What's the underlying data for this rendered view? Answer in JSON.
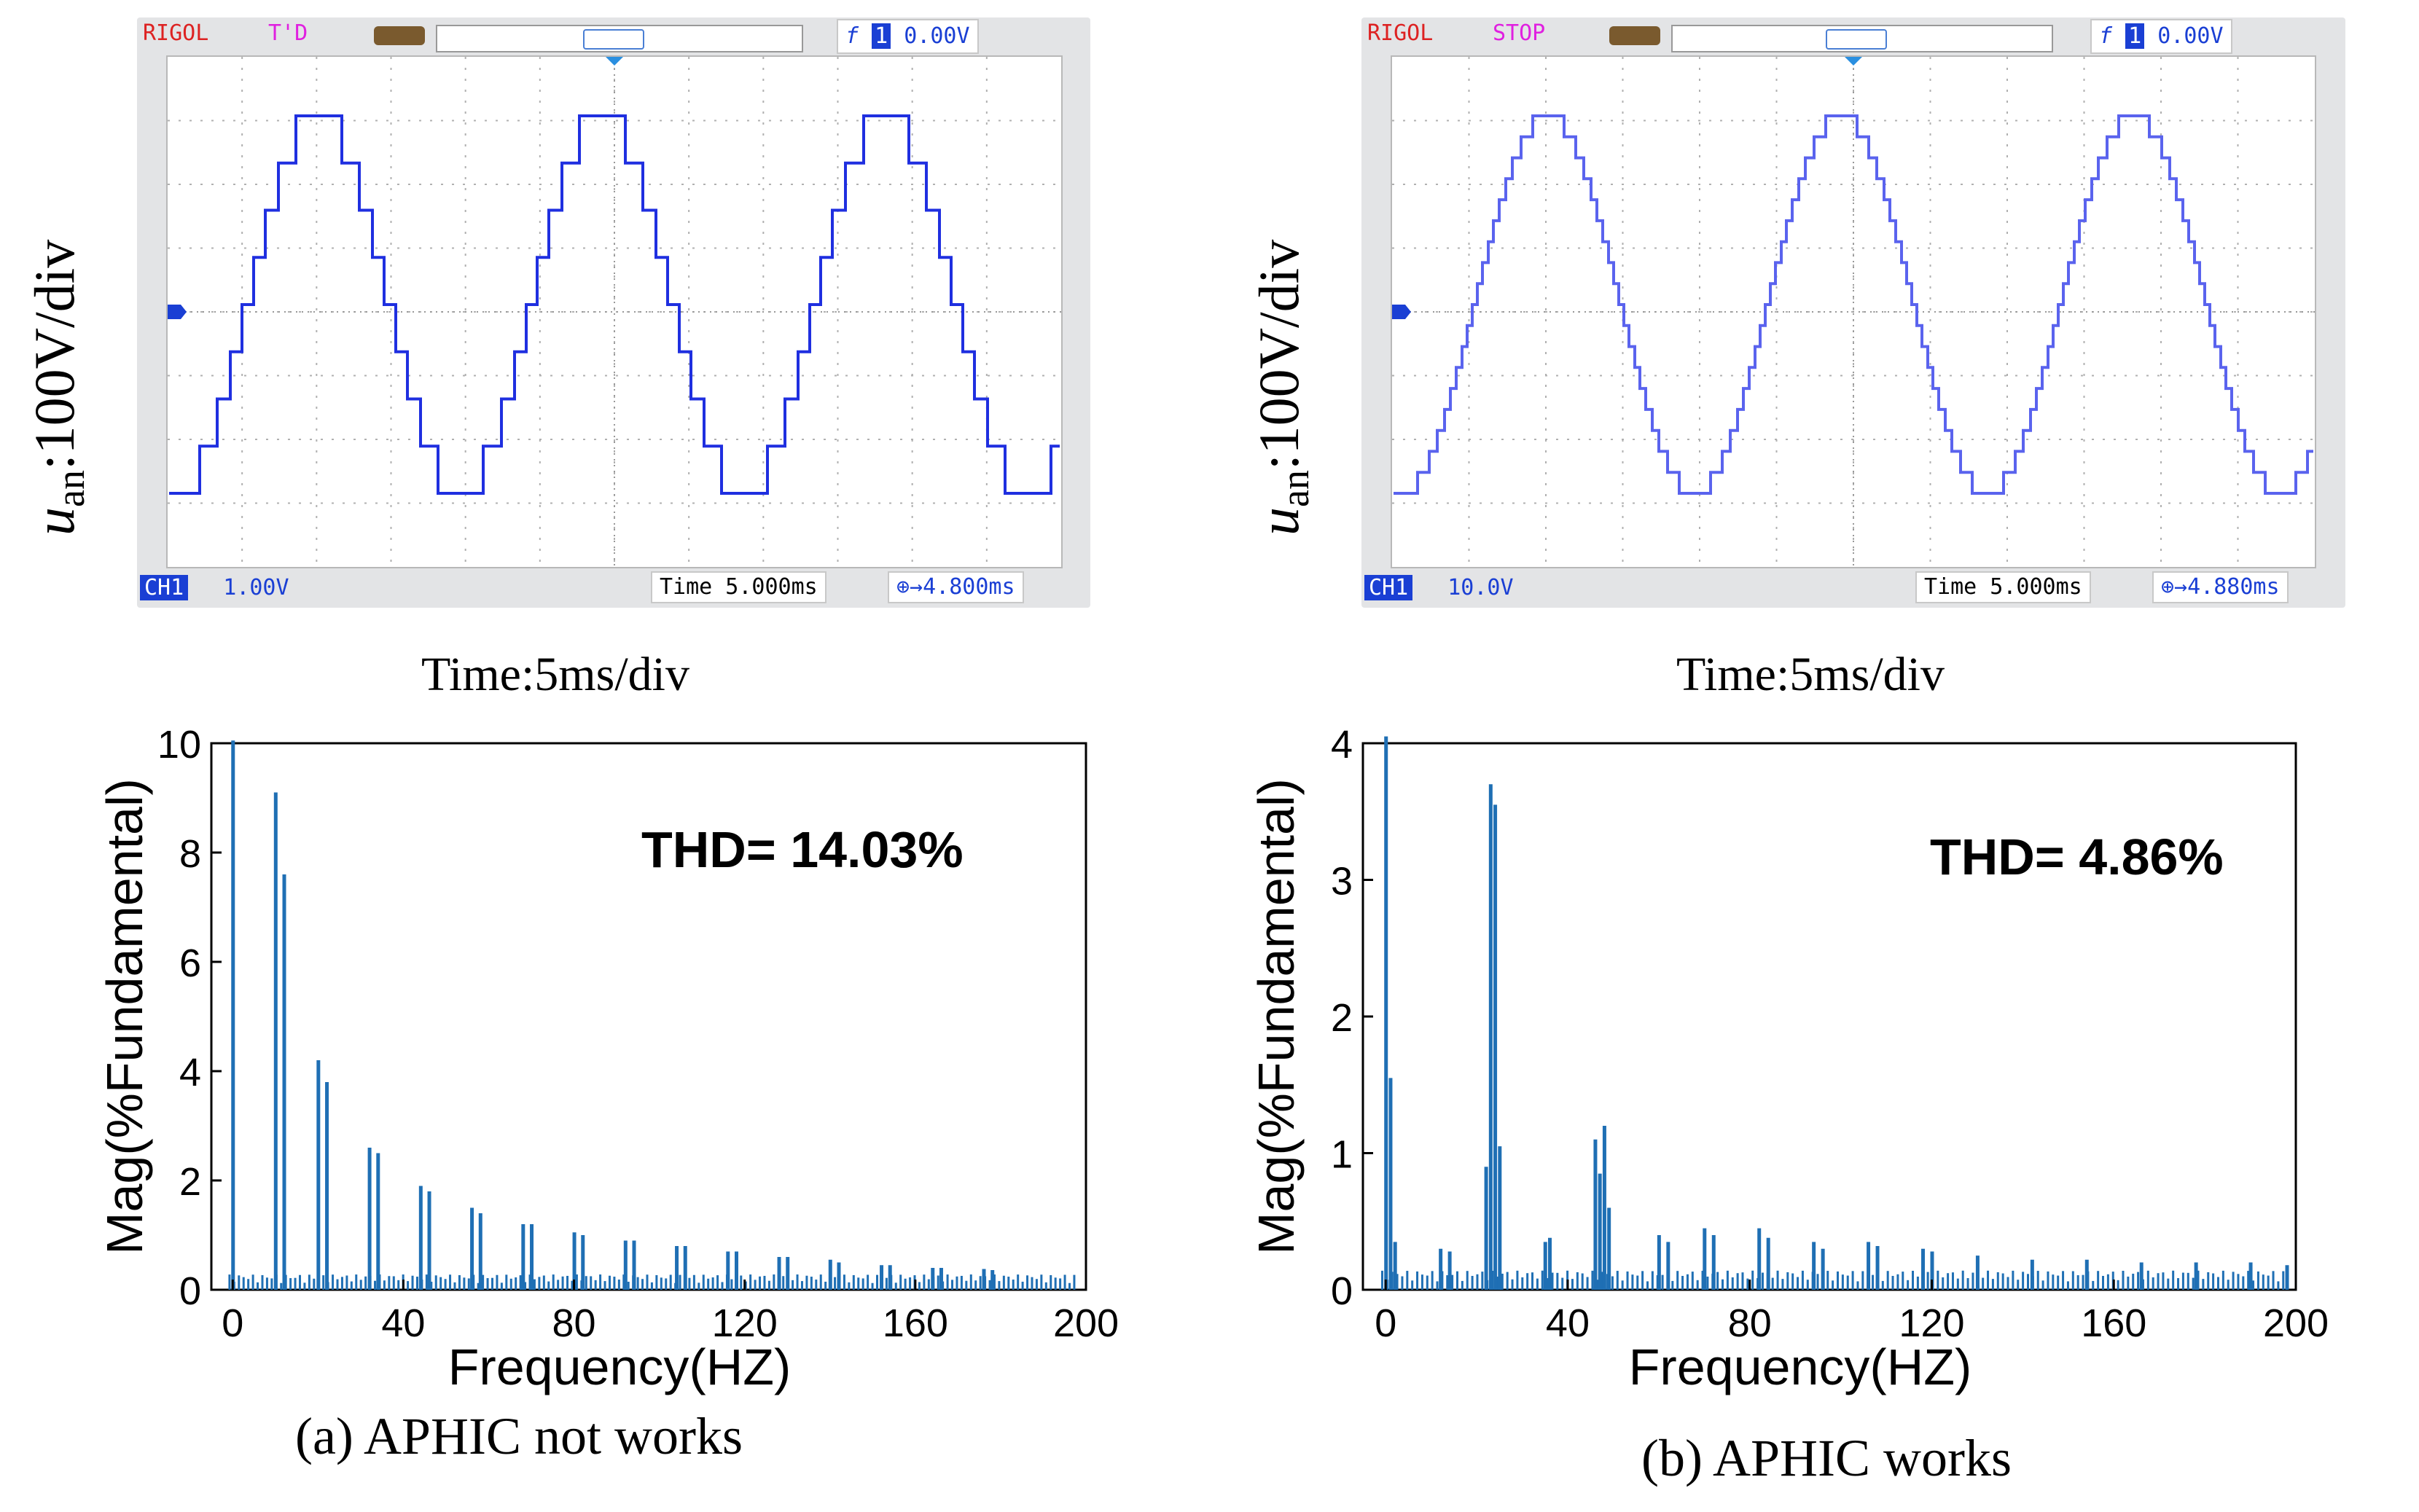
{
  "panels": [
    {
      "id": "a",
      "caption": "(a) APHIC not works",
      "scope": {
        "brand": "RIGOL",
        "status": "T'D",
        "trigger_readout": "0.00V",
        "channel_scale": "1.00V",
        "time_scale": "Time 5.000ms",
        "time_offset": "4.800ms",
        "channel_label": "CH1",
        "y_label_main": "u",
        "y_label_sub": "an",
        "y_label_rest": ":100V/div",
        "x_label": "Time:5ms/div"
      },
      "thd": "THD= 14.03%"
    },
    {
      "id": "b",
      "caption": "(b) APHIC  works",
      "scope": {
        "brand": "RIGOL",
        "status": "STOP",
        "trigger_readout": "0.00V",
        "channel_scale": "10.0V",
        "time_scale": "Time 5.000ms",
        "time_offset": "4.880ms",
        "channel_label": "CH1",
        "y_label_main": "u",
        "y_label_sub": "an",
        "y_label_rest": ":100V/div",
        "x_label": "Time:5ms/div"
      },
      "thd": "THD= 4.86%"
    }
  ],
  "colors": {
    "trace": "#1f2fe0",
    "trace_b": "#5a63ee",
    "bar": "#1f6fb4",
    "grid": "#b0b0b0"
  },
  "chart_data": [
    {
      "type": "bar",
      "title": "THD= 14.03%",
      "xlabel": "Frequency(HZ)",
      "ylabel": "Mag(%Fundamental)",
      "xlim": [
        -5,
        200
      ],
      "ylim": [
        0,
        10
      ],
      "xticks": [
        0,
        40,
        80,
        120,
        160,
        200
      ],
      "yticks": [
        0,
        2,
        4,
        6,
        8,
        10
      ],
      "x": [
        0,
        10,
        12,
        20,
        22,
        32,
        34,
        44,
        46,
        56,
        58,
        68,
        70,
        80,
        82,
        92,
        94,
        104,
        106,
        116,
        118,
        128,
        130,
        140,
        142,
        152,
        154,
        164,
        166,
        176,
        178
      ],
      "values": [
        10.1,
        9.1,
        7.6,
        4.2,
        3.8,
        2.6,
        2.5,
        1.9,
        1.8,
        1.5,
        1.4,
        1.2,
        1.2,
        1.05,
        1.0,
        0.9,
        0.9,
        0.8,
        0.8,
        0.7,
        0.7,
        0.6,
        0.6,
        0.55,
        0.5,
        0.45,
        0.45,
        0.4,
        0.4,
        0.38,
        0.36
      ],
      "floor_value": 0.2
    },
    {
      "type": "bar",
      "title": "THD= 4.86%",
      "xlabel": "Frequency(HZ)",
      "ylabel": "Mag(%Fundamental)",
      "xlim": [
        -5,
        200
      ],
      "ylim": [
        0,
        4
      ],
      "xticks": [
        0,
        40,
        80,
        120,
        160,
        200
      ],
      "yticks": [
        0,
        1,
        2,
        3,
        4
      ],
      "x": [
        0,
        1,
        2,
        22,
        23,
        24,
        25,
        46,
        47,
        48,
        49,
        35,
        36,
        12,
        14,
        60,
        62,
        70,
        72,
        82,
        84,
        94,
        96,
        106,
        108,
        118,
        120,
        130,
        142,
        154,
        166,
        178,
        190,
        198
      ],
      "values": [
        4.1,
        1.55,
        0.35,
        0.9,
        3.7,
        3.55,
        1.05,
        1.1,
        0.85,
        1.2,
        0.6,
        0.35,
        0.38,
        0.3,
        0.28,
        0.4,
        0.35,
        0.45,
        0.4,
        0.45,
        0.38,
        0.35,
        0.3,
        0.35,
        0.32,
        0.3,
        0.28,
        0.25,
        0.22,
        0.22,
        0.2,
        0.2,
        0.2,
        0.18
      ],
      "floor_value": 0.1
    }
  ]
}
